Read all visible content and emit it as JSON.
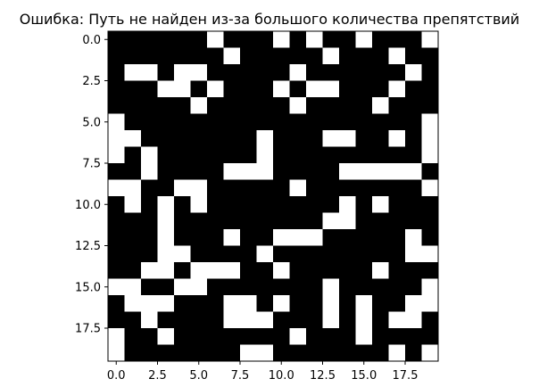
{
  "chart_data": {
    "type": "heatmap",
    "title": "Ошибка: Путь не найден из-за большого количества препятствий",
    "xlabel": "",
    "ylabel": "",
    "xlim": [
      -0.5,
      19.5
    ],
    "ylim": [
      19.5,
      -0.5
    ],
    "x_ticks": [
      "0.0",
      "2.5",
      "5.0",
      "7.5",
      "10.0",
      "12.5",
      "15.0",
      "17.5"
    ],
    "y_ticks": [
      "0.0",
      "2.5",
      "5.0",
      "7.5",
      "10.0",
      "12.5",
      "15.0",
      "17.5"
    ],
    "colors": {
      "obstacle": "#000000",
      "free": "#ffffff"
    },
    "grid": false,
    "legend": "none",
    "values": [
      [
        1,
        1,
        1,
        1,
        1,
        1,
        0,
        1,
        1,
        1,
        0,
        1,
        0,
        1,
        1,
        0,
        1,
        1,
        1,
        0
      ],
      [
        1,
        1,
        1,
        1,
        1,
        1,
        1,
        0,
        1,
        1,
        1,
        1,
        1,
        0,
        1,
        1,
        1,
        0,
        1,
        1
      ],
      [
        1,
        0,
        0,
        1,
        0,
        0,
        1,
        1,
        1,
        1,
        1,
        0,
        1,
        1,
        1,
        1,
        1,
        1,
        0,
        1
      ],
      [
        1,
        1,
        1,
        0,
        0,
        1,
        0,
        1,
        1,
        1,
        0,
        1,
        0,
        0,
        1,
        1,
        1,
        0,
        1,
        1
      ],
      [
        1,
        1,
        1,
        1,
        1,
        0,
        1,
        1,
        1,
        1,
        1,
        0,
        1,
        1,
        1,
        1,
        0,
        1,
        1,
        1
      ],
      [
        0,
        1,
        1,
        1,
        1,
        1,
        1,
        1,
        1,
        1,
        1,
        1,
        1,
        1,
        1,
        1,
        1,
        1,
        1,
        0
      ],
      [
        0,
        0,
        1,
        1,
        1,
        1,
        1,
        1,
        1,
        0,
        1,
        1,
        1,
        0,
        0,
        1,
        1,
        0,
        1,
        0
      ],
      [
        0,
        1,
        0,
        1,
        1,
        1,
        1,
        1,
        1,
        0,
        1,
        1,
        1,
        1,
        1,
        1,
        1,
        1,
        1,
        0
      ],
      [
        1,
        1,
        0,
        1,
        1,
        1,
        1,
        0,
        0,
        0,
        1,
        1,
        1,
        1,
        0,
        0,
        0,
        0,
        0,
        1
      ],
      [
        0,
        0,
        1,
        1,
        0,
        0,
        1,
        1,
        1,
        1,
        1,
        0,
        1,
        1,
        1,
        1,
        1,
        1,
        1,
        0
      ],
      [
        1,
        0,
        1,
        0,
        1,
        0,
        1,
        1,
        1,
        1,
        1,
        1,
        1,
        1,
        0,
        1,
        0,
        1,
        1,
        1
      ],
      [
        1,
        1,
        1,
        0,
        1,
        1,
        1,
        1,
        1,
        1,
        1,
        1,
        1,
        0,
        0,
        1,
        1,
        1,
        1,
        1
      ],
      [
        1,
        1,
        1,
        0,
        1,
        1,
        1,
        0,
        1,
        1,
        0,
        0,
        0,
        1,
        1,
        1,
        1,
        1,
        0,
        1
      ],
      [
        1,
        1,
        1,
        0,
        0,
        1,
        1,
        1,
        1,
        0,
        1,
        1,
        1,
        1,
        1,
        1,
        1,
        1,
        0,
        0
      ],
      [
        1,
        1,
        0,
        0,
        1,
        0,
        0,
        0,
        1,
        1,
        0,
        1,
        1,
        1,
        1,
        1,
        0,
        1,
        1,
        1
      ],
      [
        0,
        0,
        1,
        1,
        0,
        0,
        1,
        1,
        1,
        1,
        1,
        1,
        1,
        0,
        1,
        1,
        1,
        1,
        1,
        0
      ],
      [
        1,
        0,
        0,
        0,
        1,
        1,
        1,
        0,
        0,
        1,
        0,
        1,
        1,
        0,
        1,
        0,
        1,
        1,
        0,
        0
      ],
      [
        1,
        1,
        0,
        1,
        1,
        1,
        1,
        0,
        0,
        0,
        1,
        1,
        1,
        0,
        1,
        0,
        1,
        0,
        0,
        1
      ],
      [
        0,
        1,
        1,
        0,
        1,
        1,
        1,
        1,
        1,
        1,
        1,
        0,
        1,
        1,
        1,
        0,
        1,
        1,
        1,
        1
      ],
      [
        0,
        1,
        1,
        1,
        1,
        1,
        1,
        1,
        0,
        0,
        1,
        1,
        1,
        1,
        1,
        1,
        1,
        0,
        1,
        0
      ]
    ]
  }
}
